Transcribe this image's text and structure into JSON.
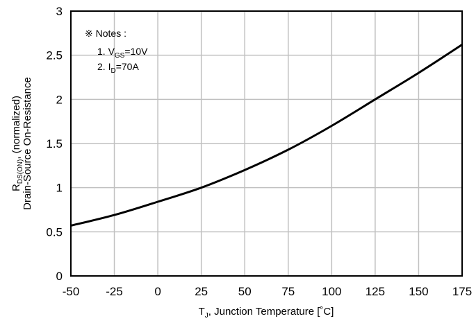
{
  "chart_data": {
    "type": "line",
    "xlabel": {
      "main": "T",
      "sub": "J",
      "rest": ", Junction Temperature [˚C]"
    },
    "ylabel": {
      "line1_main": "R",
      "line1_sub": "DS(ON)",
      "line1_rest": ", (normalized)",
      "line2": "Drain-Source On-Resistance"
    },
    "xlim": [
      -50,
      175
    ],
    "ylim": [
      0,
      3
    ],
    "xticks": [
      "-50",
      "-25",
      "0",
      "25",
      "50",
      "75",
      "100",
      "125",
      "150",
      "175"
    ],
    "yticks": [
      "0",
      "0.5",
      "1",
      "1.5",
      "2",
      "2.5",
      "3"
    ],
    "grid": true,
    "notes": {
      "header": "※ Notes :",
      "n1_prefix": "1. V",
      "n1_sub": "GS",
      "n1_rest": "=10V",
      "n2_prefix": "2. I",
      "n2_sub": "D",
      "n2_rest": "=70A"
    },
    "series": [
      {
        "x": [
          -50,
          -25,
          0,
          25,
          50,
          75,
          100,
          125,
          150,
          175
        ],
        "y": [
          0.57,
          0.69,
          0.84,
          1.0,
          1.2,
          1.43,
          1.7,
          2.0,
          2.3,
          2.62
        ]
      }
    ],
    "colors": {
      "line": "#000000",
      "grid": "#c0c0c0",
      "frame": "#000000"
    }
  }
}
